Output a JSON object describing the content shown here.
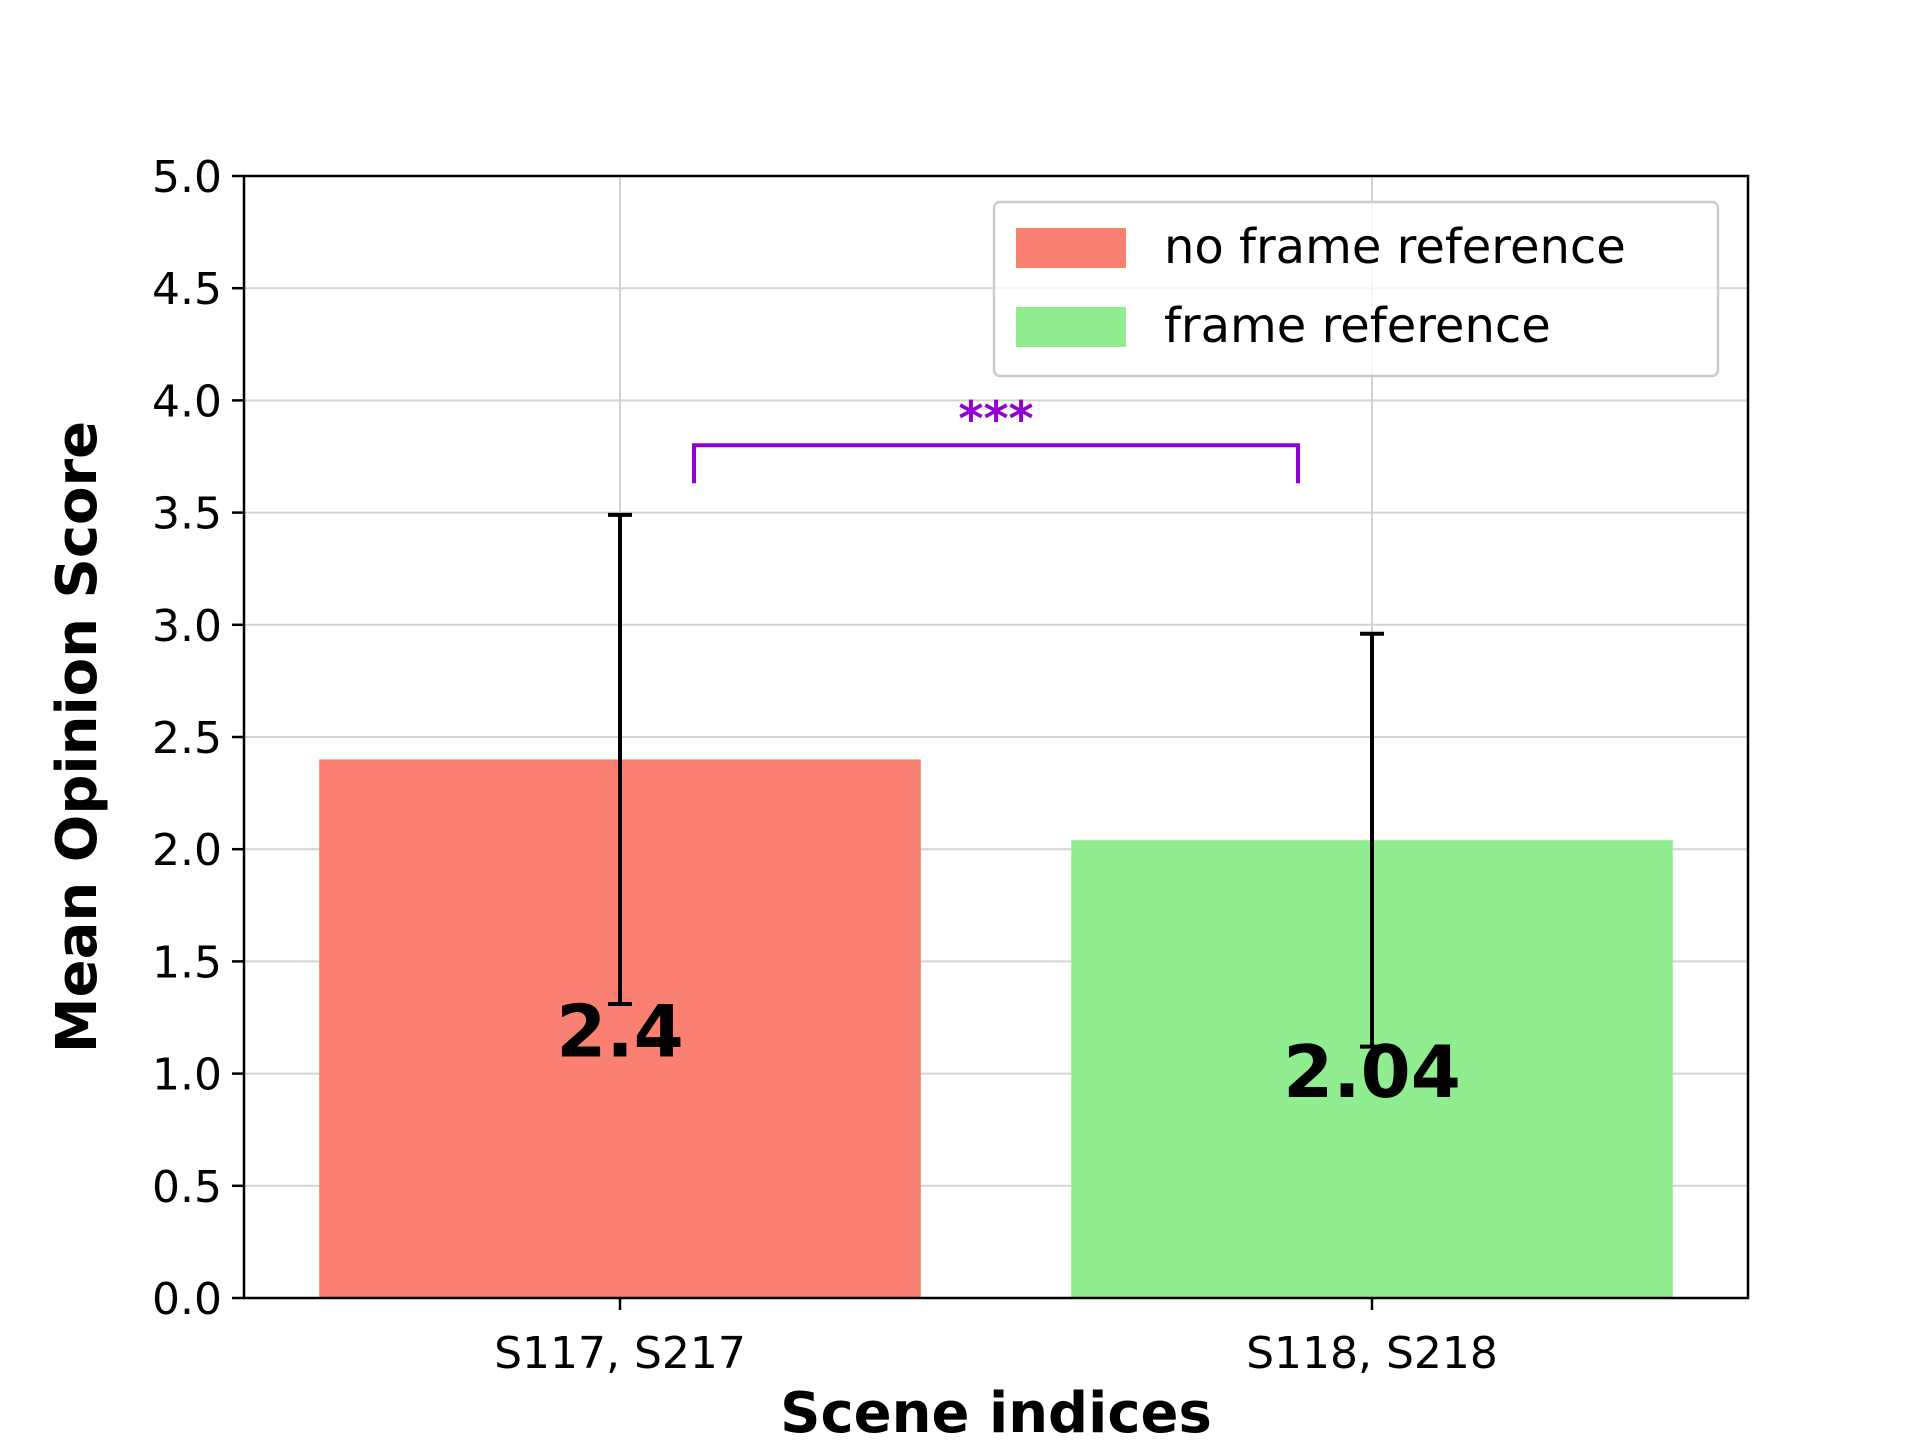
{
  "chart_data": {
    "type": "bar",
    "xlabel": "Scene indices",
    "ylabel": "Mean Opinion Score",
    "ylim": [
      0,
      5
    ],
    "yticks": [
      "0.0",
      "0.5",
      "1.0",
      "1.5",
      "2.0",
      "2.5",
      "3.0",
      "3.5",
      "4.0",
      "4.5",
      "5.0"
    ],
    "grid": true,
    "legend_position": "top-right",
    "bars": [
      {
        "category": "S117, S217",
        "value": 2.4,
        "label": "2.4",
        "error_low": 1.31,
        "error_high": 3.49,
        "color": "#fa8072",
        "legend": "no frame reference"
      },
      {
        "category": "S118, S218",
        "value": 2.04,
        "label": "2.04",
        "error_low": 1.12,
        "error_high": 2.96,
        "color": "#90ee90",
        "legend": "frame reference"
      }
    ],
    "significance": {
      "label": "***",
      "color": "#9400d3",
      "y": 3.8
    }
  }
}
